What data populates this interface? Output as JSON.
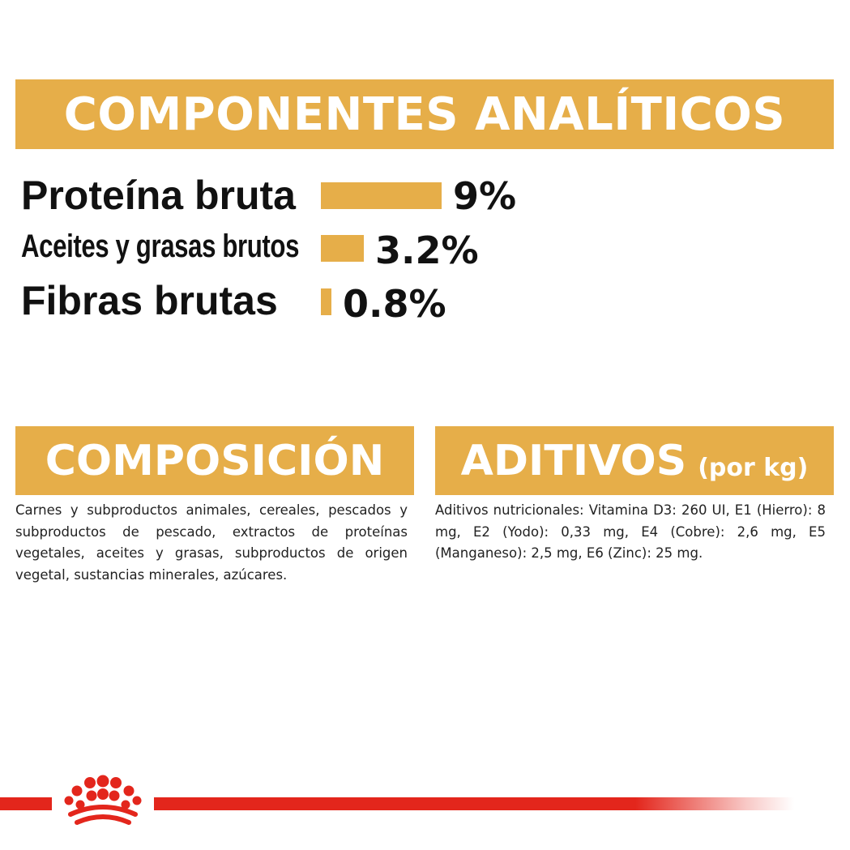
{
  "analytics": {
    "title": "COMPONENTES ANALÍTICOS",
    "rows": [
      {
        "label": "Proteína bruta",
        "value": "9%",
        "level": 9
      },
      {
        "label": "Aceites y grasas brutos",
        "value": "3.2%",
        "level": 3.2
      },
      {
        "label": "Fibras brutas",
        "value": "0.8%",
        "level": 0.8
      }
    ]
  },
  "composition": {
    "title": "COMPOSICIÓN",
    "text": "Carnes y subproductos animales, cereales, pescados y subproductos de pescado, extractos de proteínas vegetales, aceites y grasas, subproductos de origen vegetal, sustancias minerales, azúcares."
  },
  "additives": {
    "title": "ADITIVOS",
    "subtitle": "(por kg)",
    "text": "Aditivos nutricionales: Vitamina D3: 260 UI, E1 (Hierro): 8 mg, E2 (Yodo): 0,33 mg, E4 (Cobre): 2,6 mg, E5 (Manganeso): 2,5 mg, E6 (Zinc): 25 mg."
  },
  "colors": {
    "accent": "#e6ae49",
    "brand_red": "#e3261c"
  },
  "footer": {
    "logo_icon": "royal-canin-crown-icon"
  }
}
